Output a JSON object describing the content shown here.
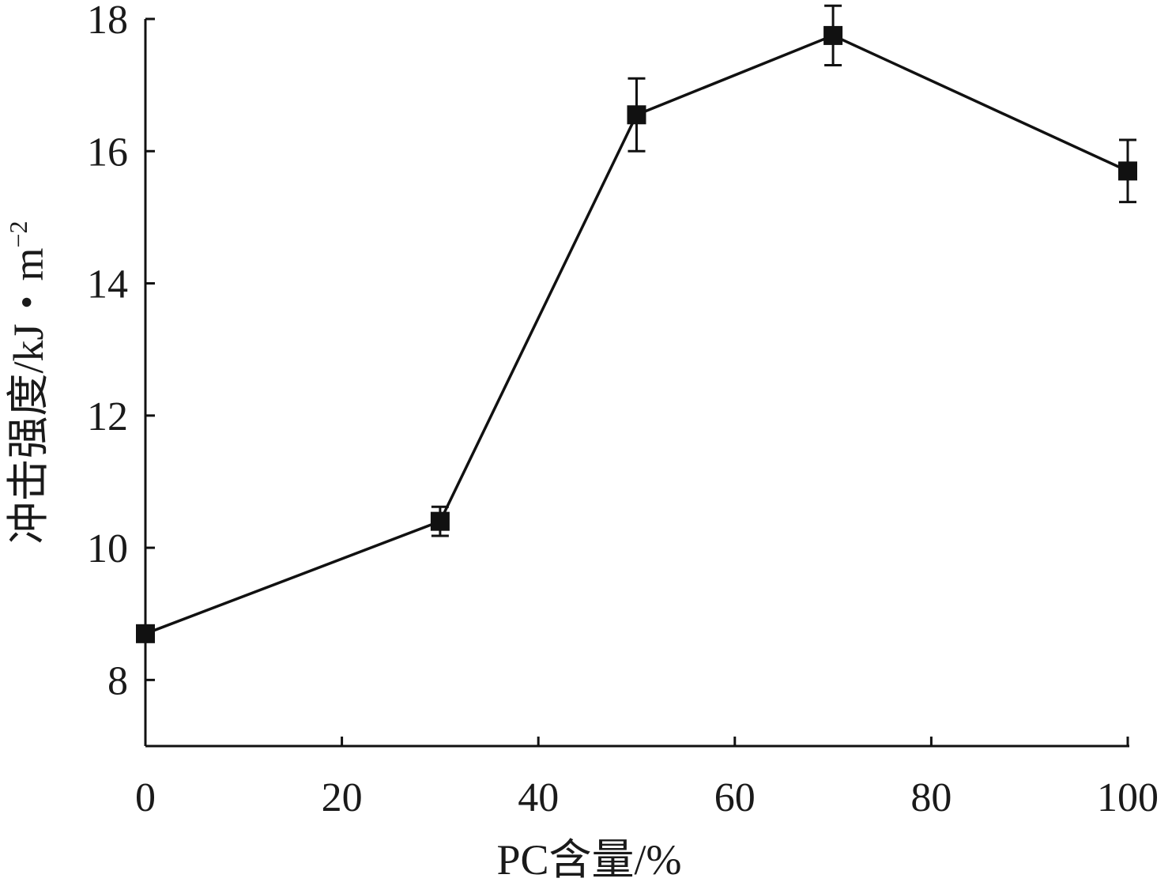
{
  "chart_data": {
    "type": "line",
    "title": "",
    "xlabel": "PC含量/%",
    "ylabel_main": "冲击强度/kJ・m",
    "ylabel_superscript": "−2",
    "xlim": [
      0,
      100
    ],
    "ylim": [
      7,
      18
    ],
    "x_ticks": [
      0,
      20,
      40,
      60,
      80,
      100
    ],
    "y_ticks": [
      8,
      10,
      12,
      14,
      16,
      18
    ],
    "x_tick_labels": [
      "0",
      "20",
      "40",
      "60",
      "80",
      "100"
    ],
    "y_tick_labels": [
      "8",
      "10",
      "12",
      "14",
      "16",
      "18"
    ],
    "grid": false,
    "legend": "none",
    "series": [
      {
        "x": [
          0,
          30,
          50,
          70,
          100
        ],
        "y": [
          8.7,
          10.4,
          16.55,
          17.75,
          15.7
        ],
        "error": [
          0.05,
          0.22,
          0.55,
          0.45,
          0.47
        ],
        "marker": "square",
        "color": "#111111"
      }
    ]
  }
}
